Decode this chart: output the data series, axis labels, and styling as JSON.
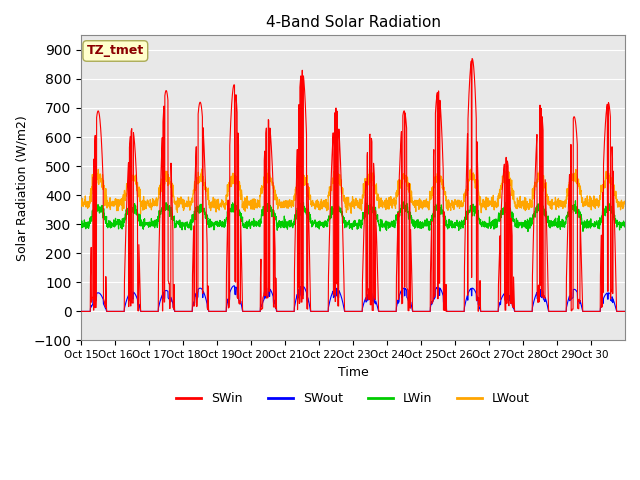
{
  "title": "4-Band Solar Radiation",
  "xlabel": "Time",
  "ylabel": "Solar Radiation (W/m2)",
  "ylim": [
    -100,
    950
  ],
  "yticks": [
    -100,
    0,
    100,
    200,
    300,
    400,
    500,
    600,
    700,
    800,
    900
  ],
  "xtick_labels": [
    "Oct 15",
    "Oct 16",
    "Oct 17",
    "Oct 18",
    "Oct 19",
    "Oct 20",
    "Oct 21",
    "Oct 22",
    "Oct 23",
    "Oct 24",
    "Oct 25",
    "Oct 26",
    "Oct 27",
    "Oct 28",
    "Oct 29",
    "Oct 30"
  ],
  "annotation_text": "TZ_tmet",
  "annotation_color": "#8B0000",
  "annotation_bg": "#FFFFCC",
  "bg_color": "#E8E8E8",
  "colors": {
    "SWin": "#FF0000",
    "SWout": "#0000FF",
    "LWin": "#00CC00",
    "LWout": "#FFA500"
  },
  "num_days": 16,
  "pts_per_hour": 6,
  "sw_peaks": [
    690,
    630,
    760,
    720,
    780,
    660,
    830,
    700,
    610,
    690,
    760,
    870,
    530,
    710,
    670,
    720
  ],
  "swout_peaks": [
    80,
    85,
    90,
    100,
    110,
    100,
    110,
    100,
    80,
    100,
    105,
    100,
    80,
    95,
    95,
    80
  ],
  "lwin_base": 300,
  "lwout_base": 370
}
